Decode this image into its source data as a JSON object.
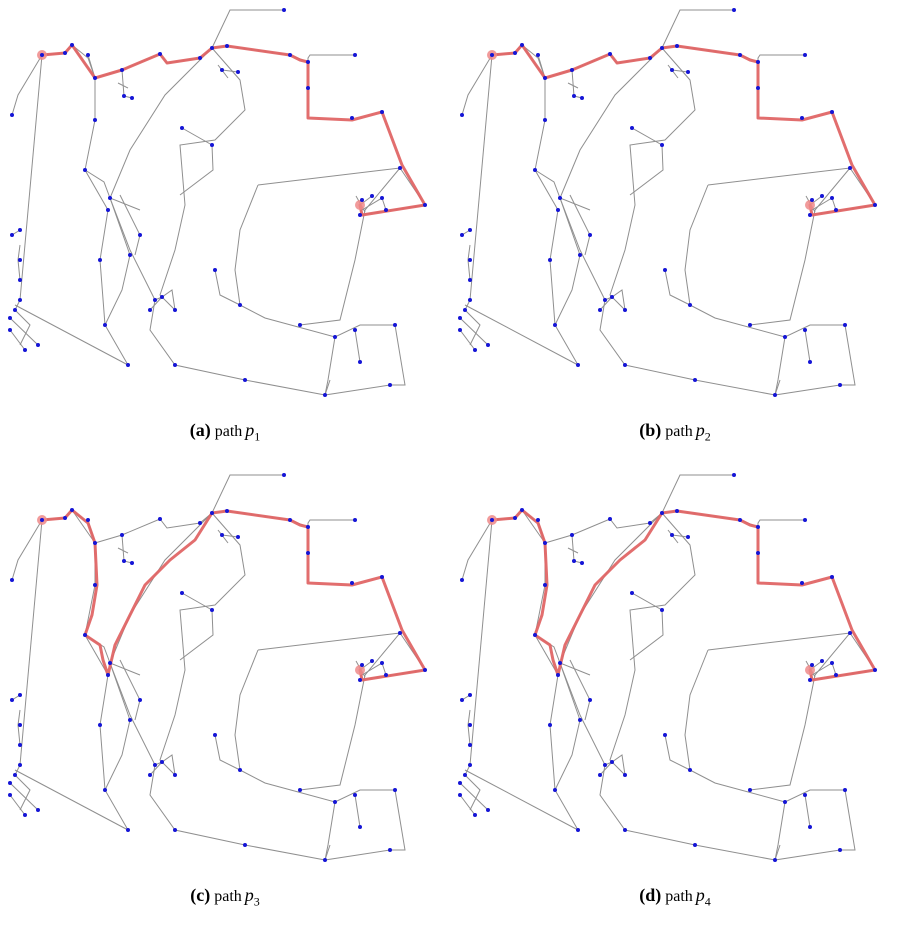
{
  "colors": {
    "edge": "#8f8f8f",
    "node": "#1515d6",
    "path": "#e06666",
    "endpoint": "#ef8a8a"
  },
  "panels": [
    {
      "id": "a",
      "label": "(a)",
      "word": "path",
      "var": "p",
      "sub": "1",
      "route": "east"
    },
    {
      "id": "b",
      "label": "(b)",
      "word": "path",
      "var": "p",
      "sub": "2",
      "route": "east"
    },
    {
      "id": "c",
      "label": "(c)",
      "word": "path",
      "var": "p",
      "sub": "3",
      "route": "inner"
    },
    {
      "id": "d",
      "label": "(d)",
      "word": "path",
      "var": "p",
      "sub": "4",
      "route": "inner"
    }
  ]
}
